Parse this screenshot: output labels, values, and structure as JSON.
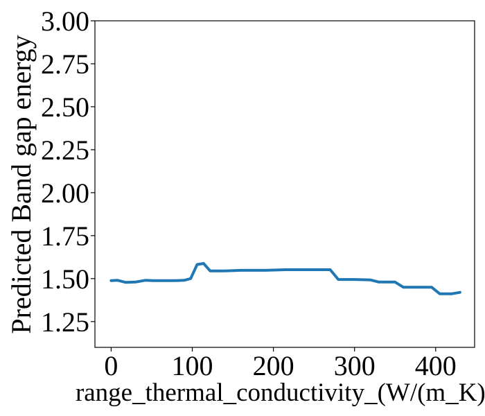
{
  "chart_data": {
    "type": "line",
    "title": "",
    "xlabel": "range_thermal_conductivity_(W/(m_K))",
    "ylabel": "Predicted Band gap energy",
    "xlim": [
      -20,
      448
    ],
    "ylim": [
      1.1,
      3.0
    ],
    "x_ticks": [
      0,
      100,
      200,
      300,
      400
    ],
    "y_ticks": [
      1.25,
      1.5,
      1.75,
      2.0,
      2.25,
      2.5,
      2.75,
      3.0
    ],
    "x_tick_labels": [
      "0",
      "100",
      "200",
      "300",
      "400"
    ],
    "y_tick_labels": [
      "1.25",
      "1.50",
      "1.75",
      "2.00",
      "2.25",
      "2.50",
      "2.75",
      "3.00"
    ],
    "grid": false,
    "series": [
      {
        "color": "#1f77b4",
        "x": [
          0,
          8,
          18,
          30,
          42,
          52,
          64,
          78,
          90,
          98,
          106,
          114,
          122,
          140,
          160,
          190,
          215,
          240,
          270,
          280,
          300,
          320,
          330,
          350,
          360,
          380,
          395,
          405,
          420,
          430
        ],
        "y": [
          1.488,
          1.49,
          1.478,
          1.48,
          1.49,
          1.488,
          1.488,
          1.488,
          1.49,
          1.5,
          1.582,
          1.588,
          1.545,
          1.545,
          1.548,
          1.548,
          1.552,
          1.552,
          1.552,
          1.495,
          1.495,
          1.492,
          1.48,
          1.48,
          1.45,
          1.45,
          1.45,
          1.412,
          1.412,
          1.42
        ]
      }
    ]
  }
}
